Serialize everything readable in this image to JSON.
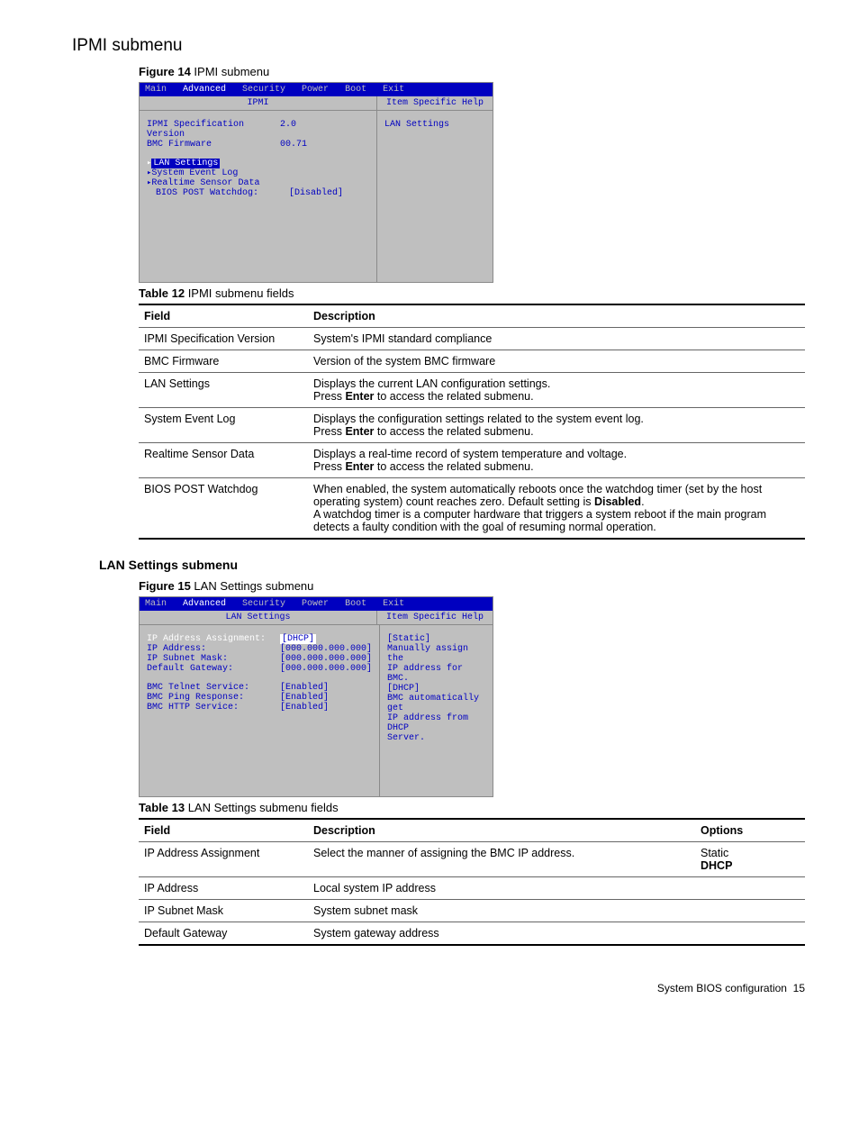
{
  "section_title": "IPMI submenu",
  "fig14": {
    "label": "Figure 14",
    "title": "IPMI submenu"
  },
  "bios1": {
    "menu": [
      "Main",
      "Advanced",
      "Security",
      "Power",
      "Boot",
      "Exit"
    ],
    "selected_tab": "Advanced",
    "panel_title": "IPMI",
    "help_title": "Item Specific Help",
    "help_text": "LAN Settings",
    "rows": [
      {
        "label": "IPMI Specification Version",
        "value": "2.0"
      },
      {
        "label": "BMC Firmware",
        "value": "00.71"
      }
    ],
    "links": [
      "LAN Settings",
      "System Event Log",
      "Realtime Sensor Data"
    ],
    "selected_link": "LAN Settings",
    "last": {
      "label": "BIOS POST Watchdog:",
      "value": "[Disabled]"
    }
  },
  "table12": {
    "label": "Table 12",
    "title": "IPMI submenu fields",
    "headers": [
      "Field",
      "Description"
    ],
    "rows": [
      {
        "f": "IPMI Specification Version",
        "d": "System's IPMI standard compliance"
      },
      {
        "f": "BMC Firmware",
        "d": "Version of the system BMC firmware"
      },
      {
        "f": "LAN Settings",
        "d": "Displays the current LAN configuration settings.\nPress <b>Enter</b> to access the related submenu."
      },
      {
        "f": "System Event Log",
        "d": "Displays the configuration settings related to the system event log.\nPress <b>Enter</b> to access the related submenu."
      },
      {
        "f": "Realtime Sensor Data",
        "d": "Displays a real-time record of system temperature and voltage.\nPress <b>Enter</b> to access the related submenu."
      },
      {
        "f": "BIOS POST Watchdog",
        "d": "When enabled, the system automatically reboots once the watchdog timer (set by the host operating system) count reaches zero. Default setting is <b>Disabled</b>.\nA watchdog timer is a computer hardware that triggers a system reboot if the main program detects a faulty condition with the goal of resuming normal operation."
      }
    ]
  },
  "subsection_title": "LAN Settings submenu",
  "fig15": {
    "label": "Figure 15",
    "title": "LAN Settings submenu"
  },
  "bios2": {
    "menu": [
      "Main",
      "Advanced",
      "Security",
      "Power",
      "Boot",
      "Exit"
    ],
    "selected_tab": "Advanced",
    "panel_title": "LAN Settings",
    "help_title": "Item Specific Help",
    "help_lines": [
      "[Static]",
      " Manually assign the",
      " IP address for BMC.",
      "[DHCP]",
      " BMC automatically get",
      " IP address from DHCP",
      " Server."
    ],
    "rows": [
      {
        "label": "IP Address Assignment:",
        "value": "[DHCP]",
        "sel": true
      },
      {
        "label": "IP Address:",
        "value": "[000.000.000.000]"
      },
      {
        "label": "IP Subnet Mask:",
        "value": "[000.000.000.000]"
      },
      {
        "label": "Default Gateway:",
        "value": "[000.000.000.000]"
      }
    ],
    "rows2": [
      {
        "label": "BMC Telnet Service:",
        "value": "[Enabled]"
      },
      {
        "label": "BMC Ping Response:",
        "value": "[Enabled]"
      },
      {
        "label": "BMC HTTP Service:",
        "value": "[Enabled]"
      }
    ]
  },
  "table13": {
    "label": "Table 13",
    "title": "LAN Settings submenu fields",
    "headers": [
      "Field",
      "Description",
      "Options"
    ],
    "rows": [
      {
        "f": "IP Address Assignment",
        "d": "Select the manner of assigning the BMC IP address.",
        "o": "Static\n<b>DHCP</b>"
      },
      {
        "f": "IP Address",
        "d": "Local system IP address",
        "o": ""
      },
      {
        "f": "IP Subnet Mask",
        "d": "System subnet mask",
        "o": ""
      },
      {
        "f": "Default Gateway",
        "d": "System gateway address",
        "o": ""
      }
    ]
  },
  "footer": {
    "text": "System BIOS configuration",
    "page": "15"
  }
}
